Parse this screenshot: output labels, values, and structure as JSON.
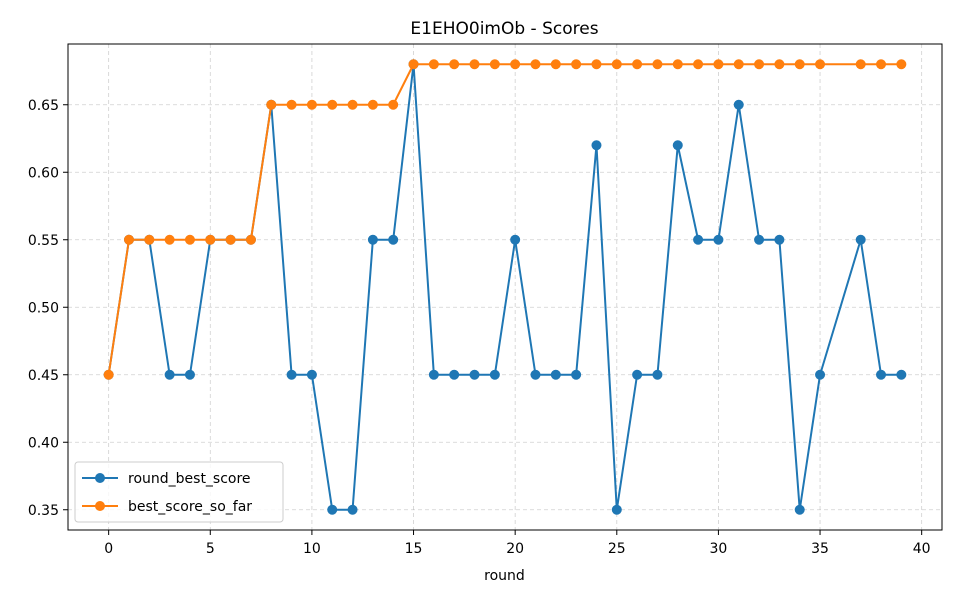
{
  "chart_data": {
    "type": "line",
    "title": "E1EHO0imOb - Scores",
    "xlabel": "round",
    "ylabel": "",
    "xlim": [
      -2,
      41
    ],
    "ylim": [
      0.335,
      0.695
    ],
    "xticks": [
      0,
      5,
      10,
      15,
      20,
      25,
      30,
      35,
      40
    ],
    "yticks": [
      0.35,
      0.4,
      0.45,
      0.5,
      0.55,
      0.6,
      0.65
    ],
    "ytick_labels": [
      "0.35",
      "0.40",
      "0.45",
      "0.50",
      "0.55",
      "0.60",
      "0.65"
    ],
    "grid": true,
    "legend_position": "lower-left",
    "series": [
      {
        "name": "round_best_score",
        "color": "#1f77b4",
        "marker": "circle",
        "x": [
          0,
          1,
          2,
          3,
          4,
          5,
          6,
          7,
          8,
          9,
          10,
          11,
          12,
          13,
          14,
          15,
          16,
          17,
          18,
          19,
          20,
          21,
          22,
          23,
          24,
          25,
          26,
          27,
          28,
          29,
          30,
          31,
          32,
          33,
          34,
          35,
          37,
          38,
          39
        ],
        "y": [
          0.45,
          0.55,
          0.55,
          0.45,
          0.45,
          0.55,
          0.55,
          0.55,
          0.65,
          0.45,
          0.45,
          0.35,
          0.35,
          0.55,
          0.55,
          0.68,
          0.45,
          0.45,
          0.45,
          0.45,
          0.55,
          0.45,
          0.45,
          0.45,
          0.62,
          0.35,
          0.45,
          0.45,
          0.62,
          0.55,
          0.55,
          0.65,
          0.55,
          0.55,
          0.35,
          0.45,
          0.55,
          0.45,
          0.45
        ]
      },
      {
        "name": "best_score_so_far",
        "color": "#ff7f0e",
        "marker": "circle",
        "x": [
          0,
          1,
          2,
          3,
          4,
          5,
          6,
          7,
          8,
          9,
          10,
          11,
          12,
          13,
          14,
          15,
          16,
          17,
          18,
          19,
          20,
          21,
          22,
          23,
          24,
          25,
          26,
          27,
          28,
          29,
          30,
          31,
          32,
          33,
          34,
          35,
          37,
          38,
          39
        ],
        "y": [
          0.45,
          0.55,
          0.55,
          0.55,
          0.55,
          0.55,
          0.55,
          0.55,
          0.65,
          0.65,
          0.65,
          0.65,
          0.65,
          0.65,
          0.65,
          0.68,
          0.68,
          0.68,
          0.68,
          0.68,
          0.68,
          0.68,
          0.68,
          0.68,
          0.68,
          0.68,
          0.68,
          0.68,
          0.68,
          0.68,
          0.68,
          0.68,
          0.68,
          0.68,
          0.68,
          0.68,
          0.68,
          0.68,
          0.68
        ]
      }
    ]
  }
}
